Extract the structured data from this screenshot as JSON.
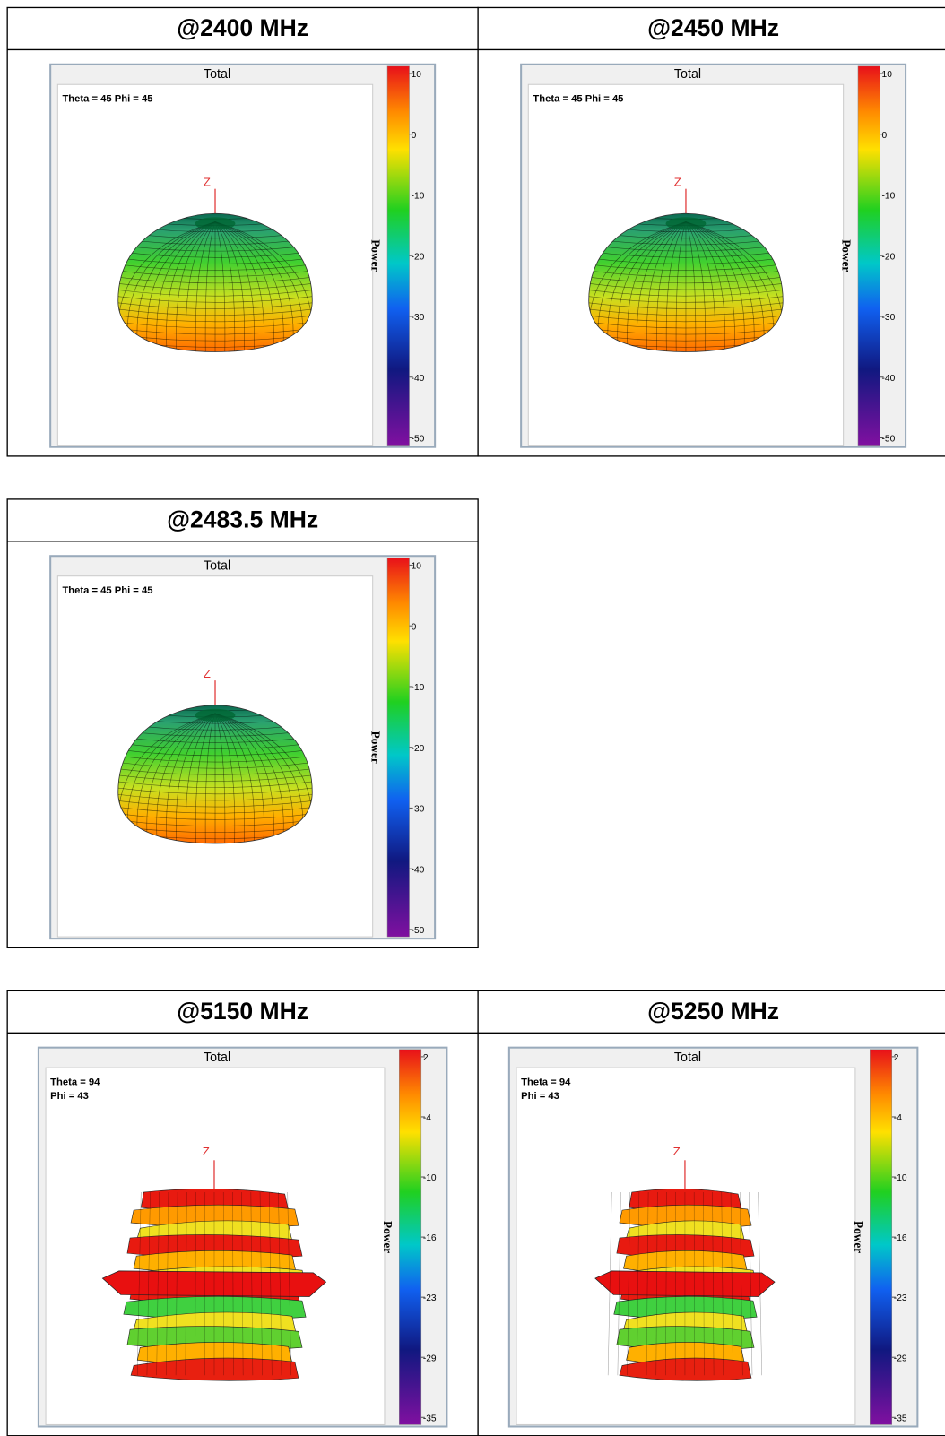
{
  "table": {
    "rows": [
      {
        "cells": [
          {
            "header": "@2400 MHz",
            "plot": {
              "title": "Total",
              "annotation": [
                "Theta = 45 Phi = 45"
              ],
              "axis_label": "Z",
              "colorbar_label": "Power",
              "colorbar_ticks": [
                "10",
                "0",
                "-10",
                "-20",
                "-30",
                "-40",
                "-50"
              ],
              "shape": "dome"
            }
          },
          {
            "header": "@2450 MHz",
            "plot": {
              "title": "Total",
              "annotation": [
                "Theta = 45 Phi = 45"
              ],
              "axis_label": "Z",
              "colorbar_label": "Power",
              "colorbar_ticks": [
                "10",
                "0",
                "-10",
                "-20",
                "-30",
                "-40",
                "-50"
              ],
              "shape": "dome"
            }
          }
        ]
      },
      {
        "cells": [
          {
            "header": "@2483.5 MHz",
            "plot": {
              "title": "Total",
              "annotation": [
                "Theta = 45 Phi = 45"
              ],
              "axis_label": "Z",
              "colorbar_label": "Power",
              "colorbar_ticks": [
                "10",
                "0",
                "-10",
                "-20",
                "-30",
                "-40",
                "-50"
              ],
              "shape": "dome"
            }
          }
        ]
      },
      {
        "cells": [
          {
            "header": "@5150 MHz",
            "plot": {
              "title": "Total",
              "annotation": [
                "Theta = 94",
                "Phi = 43"
              ],
              "axis_label": "Z",
              "colorbar_label": "Power",
              "colorbar_ticks": [
                "2",
                "-4",
                "-10",
                "-16",
                "-23",
                "-29",
                "-35"
              ],
              "shape": "bands"
            }
          },
          {
            "header": "@5250 MHz",
            "plot": {
              "title": "Total",
              "annotation": [
                "Theta = 94",
                "Phi = 43"
              ],
              "axis_label": "Z",
              "colorbar_label": "Power",
              "colorbar_ticks": [
                "2",
                "-4",
                "-10",
                "-16",
                "-23",
                "-29",
                "-35"
              ],
              "shape": "bands"
            }
          }
        ]
      }
    ]
  }
}
